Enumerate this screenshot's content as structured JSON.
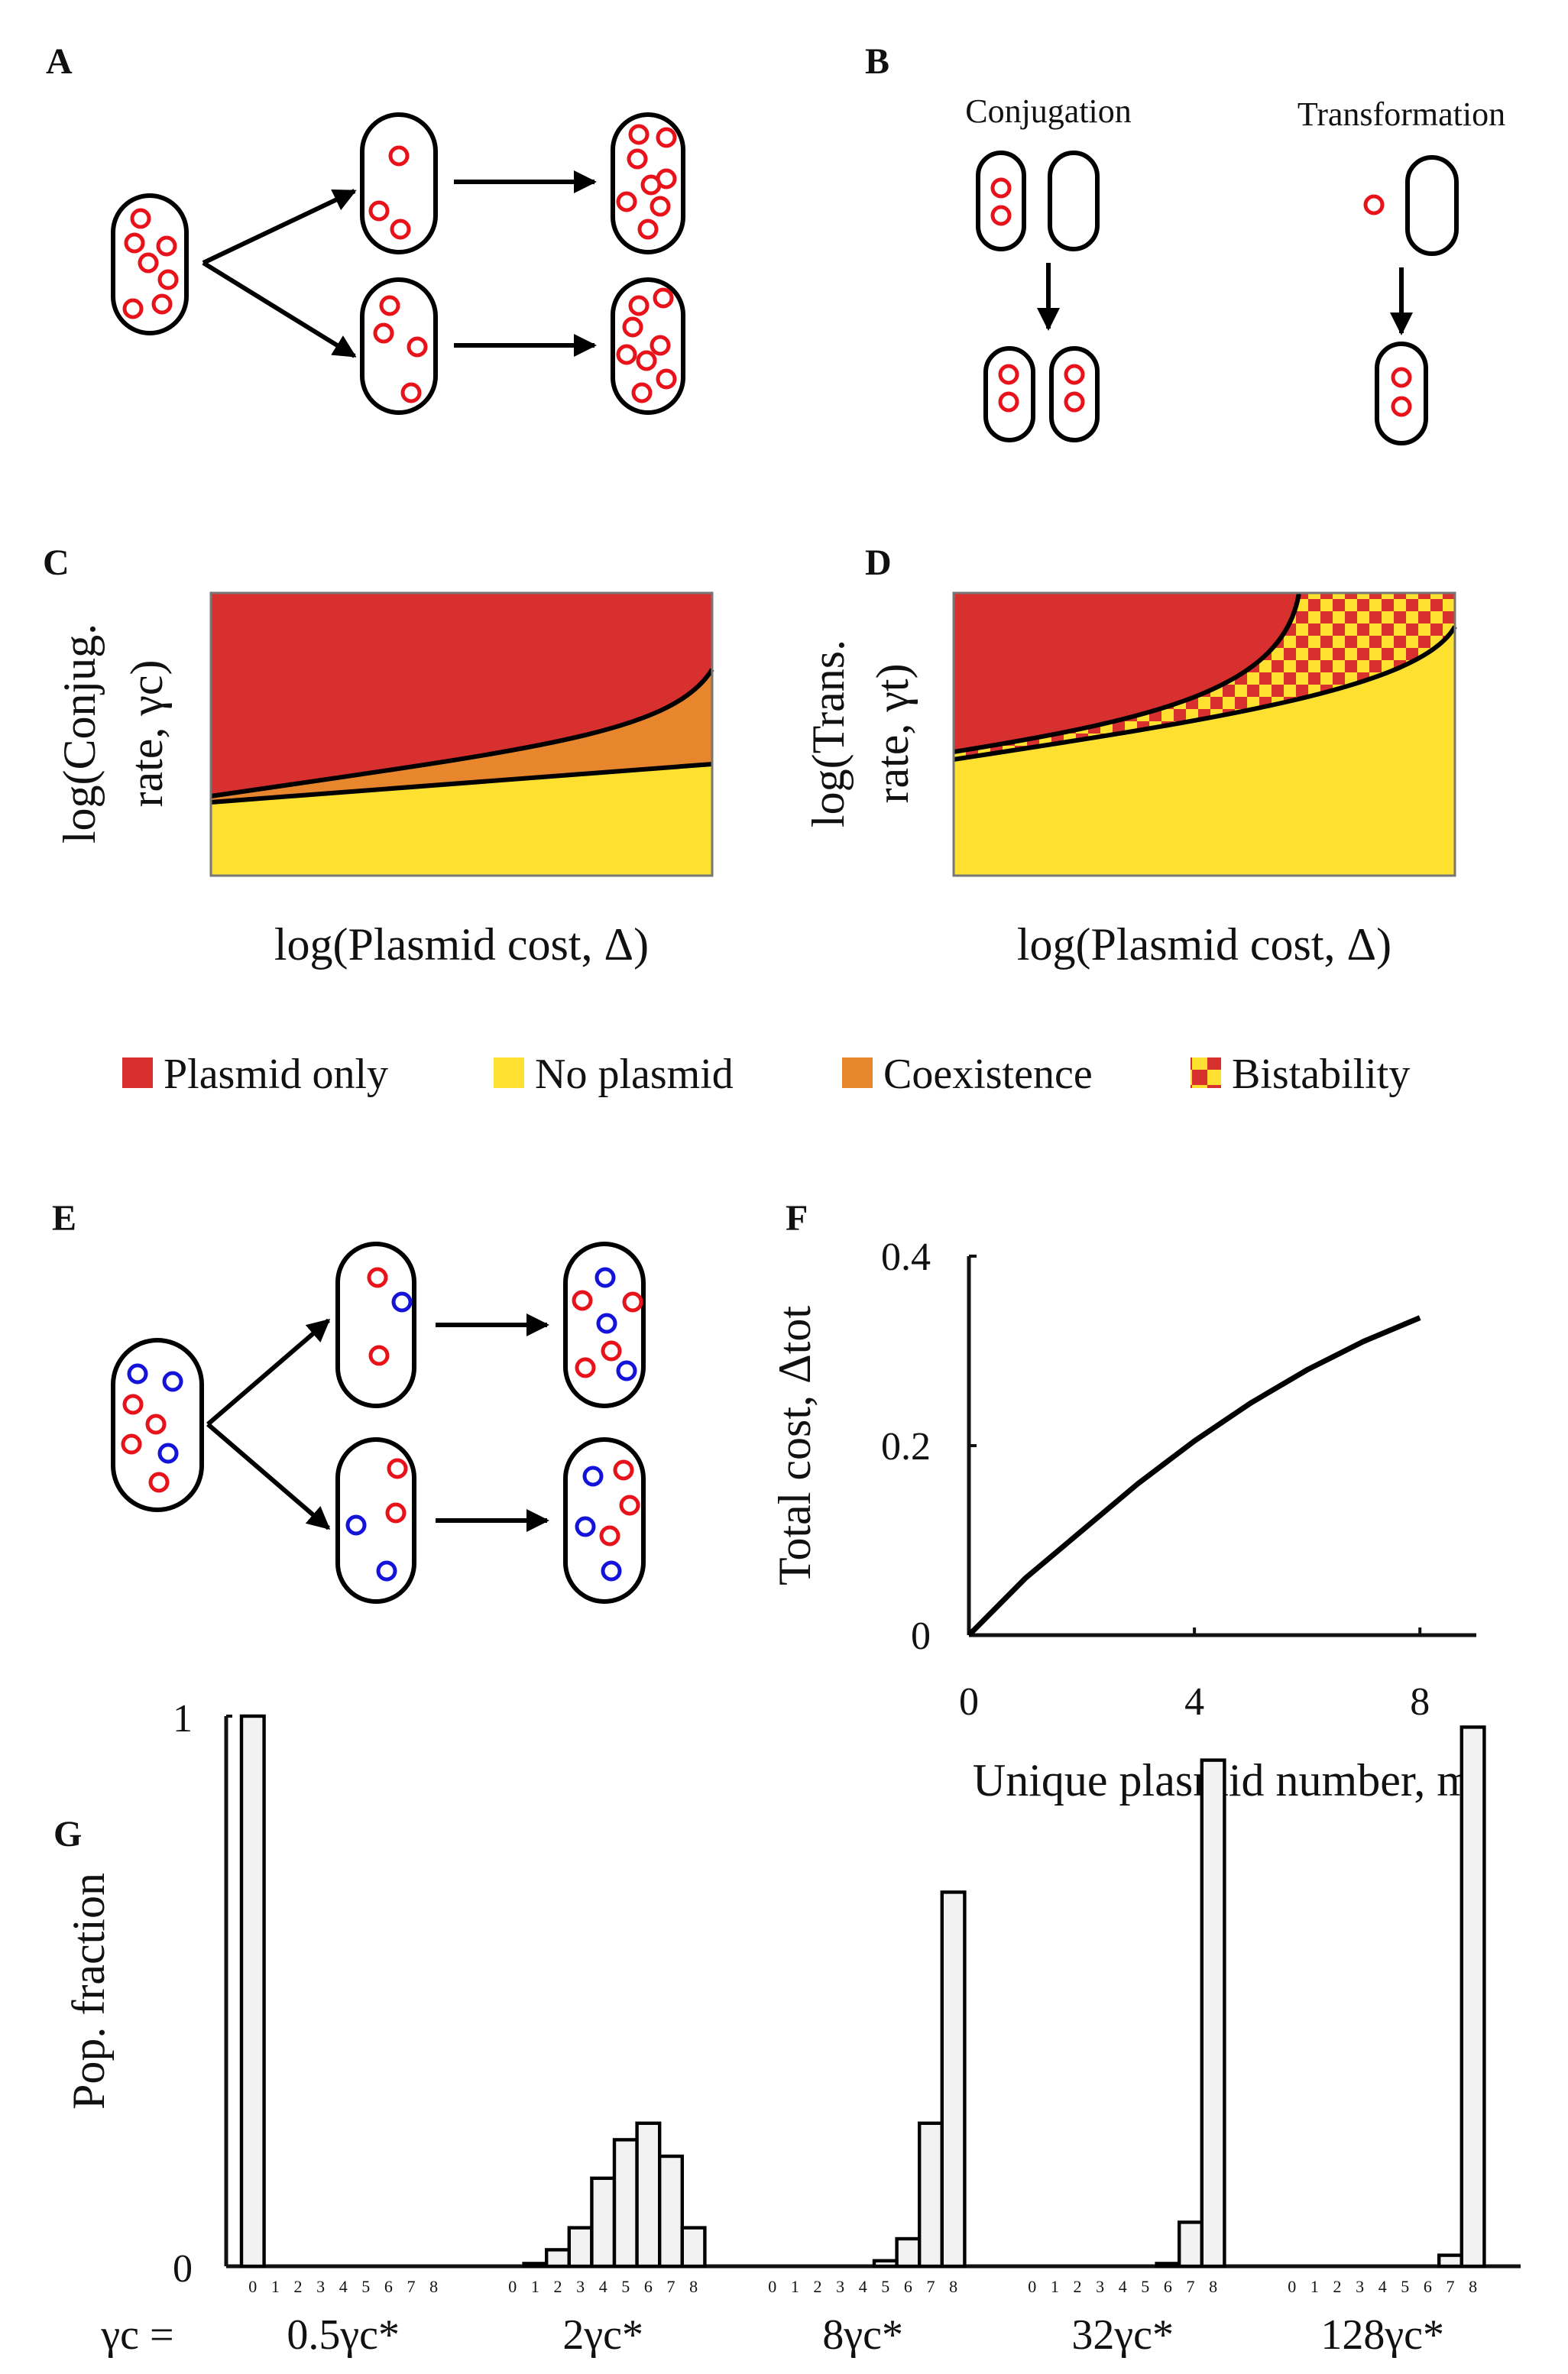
{
  "panel_labels": [
    "A",
    "B",
    "C",
    "D",
    "E",
    "F",
    "G"
  ],
  "panel_b": {
    "left_title": "Conjugation",
    "right_title": "Transformation"
  },
  "phase_diagrams": [
    {
      "x_label": "log(Plasmid cost, Δ)",
      "y_label": [
        "log(Conjug.",
        "rate, γc)"
      ]
    },
    {
      "x_label": "log(Plasmid cost, Δ)",
      "y_label": [
        "log(Trans.",
        "rate, γt)"
      ]
    }
  ],
  "legend": [
    {
      "name": "Plasmid only",
      "color": "#d7302f"
    },
    {
      "name": "No plasmid",
      "color": "#fde030"
    },
    {
      "name": "Coexistence",
      "color": "#e8862e"
    },
    {
      "name": "Bistability",
      "colors": [
        "#d7302f",
        "#fde030"
      ]
    }
  ],
  "chart_data": [
    {
      "type": "line",
      "x_label": "Unique plasmid number, m",
      "y_label": "Total cost, Δtot",
      "x": [
        0,
        1,
        2,
        3,
        4,
        5,
        6,
        7,
        8
      ],
      "values": [
        0,
        0.06,
        0.11,
        0.16,
        0.205,
        0.245,
        0.28,
        0.31,
        0.335
      ],
      "color": "#000000",
      "xlim": [
        0,
        9
      ],
      "ylim": [
        0,
        0.4
      ],
      "xticks": [
        0,
        4,
        8
      ],
      "yticks": [
        0,
        0.2,
        0.4
      ]
    },
    {
      "type": "grouped-histogram",
      "y_label": "Pop. fraction",
      "group_axis_label": "γc =",
      "ylim": [
        0,
        1
      ],
      "yticks": [
        0,
        1
      ],
      "color": "#f2f2f2",
      "groups": [
        {
          "name": "0.5γc*",
          "categories": [
            "0",
            "1",
            "2",
            "3",
            "4",
            "5",
            "6",
            "7",
            "8"
          ],
          "values": [
            1,
            0,
            0,
            0,
            0,
            0,
            0,
            0,
            0
          ]
        },
        {
          "name": "2γc*",
          "categories": [
            "0",
            "1",
            "2",
            "3",
            "4",
            "5",
            "6",
            "7",
            "8"
          ],
          "values": [
            0,
            0.005,
            0.03,
            0.07,
            0.16,
            0.23,
            0.26,
            0.2,
            0.07
          ]
        },
        {
          "name": "8γc*",
          "categories": [
            "0",
            "1",
            "2",
            "3",
            "4",
            "5",
            "6",
            "7",
            "8"
          ],
          "values": [
            0,
            0,
            0,
            0,
            0,
            0.01,
            0.05,
            0.26,
            0.68
          ]
        },
        {
          "name": "32γc*",
          "categories": [
            "0",
            "1",
            "2",
            "3",
            "4",
            "5",
            "6",
            "7",
            "8"
          ],
          "values": [
            0,
            0,
            0,
            0,
            0,
            0,
            0.005,
            0.08,
            0.92
          ]
        },
        {
          "name": "128γc*",
          "categories": [
            "0",
            "1",
            "2",
            "3",
            "4",
            "5",
            "6",
            "7",
            "8"
          ],
          "values": [
            0,
            0,
            0,
            0,
            0,
            0,
            0,
            0.02,
            0.98
          ]
        }
      ]
    }
  ]
}
